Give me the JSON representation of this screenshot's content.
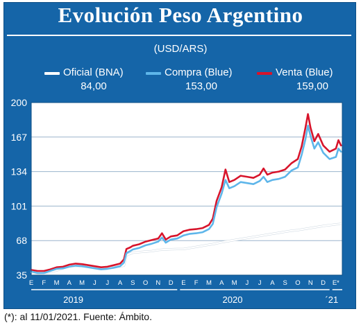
{
  "header": {
    "title": "Evolución Peso Argentino",
    "unit": "(USD/ARS)"
  },
  "footnote": "(*): al 11/01/2021. Fuente: Ámbito.",
  "colors": {
    "background": "#1565a8",
    "plot_background": "#ffffff",
    "oficial": "#ffffff",
    "compra": "#5eb6ea",
    "venta": "#d7142b"
  },
  "chart_data": {
    "type": "line",
    "title": "Evolución Peso Argentino",
    "ylabel": "(USD/ARS)",
    "ylim": [
      35,
      200
    ],
    "yticks": [
      35,
      68,
      101,
      134,
      167,
      200
    ],
    "month_labels": [
      "E",
      "F",
      "M",
      "A",
      "M",
      "J",
      "J",
      "A",
      "S",
      "O",
      "N",
      "D",
      "E",
      "F",
      "M",
      "A",
      "M",
      "J",
      "J",
      "A",
      "S",
      "O",
      "N",
      "D",
      "E*"
    ],
    "year_labels": [
      "2019",
      "2020",
      "´21"
    ],
    "grid": true,
    "legend_position": "top",
    "series": [
      {
        "name": "Oficial (BNA)",
        "last_value": "84,00",
        "color": "#ffffff",
        "x": [
          0,
          0.5,
          1,
          1.5,
          2,
          2.5,
          3,
          3.5,
          4,
          4.5,
          5,
          5.5,
          6,
          6.5,
          7,
          7.3,
          7.5,
          7.8,
          8,
          8.5,
          9,
          9.5,
          10,
          10.5,
          11,
          11.5,
          12,
          12.5,
          13,
          13.5,
          14,
          14.5,
          15,
          15.5,
          16,
          16.5,
          17,
          17.5,
          18,
          18.5,
          19,
          19.5,
          20,
          20.5,
          21,
          21.5,
          22,
          22.5,
          23,
          23.5,
          24,
          24.4
        ],
        "values": [
          37.5,
          37.0,
          37.2,
          38.0,
          39.5,
          41.5,
          43.5,
          43.8,
          43.6,
          43.0,
          42.5,
          42.0,
          42.0,
          42.2,
          43.5,
          44.0,
          54.0,
          55.5,
          56.5,
          57.0,
          57.5,
          58.0,
          59.0,
          59.5,
          59.8,
          59.9,
          60.0,
          61.0,
          62.0,
          63.0,
          64.0,
          65.0,
          66.5,
          67.5,
          68.5,
          69.5,
          70.5,
          71.5,
          72.5,
          73.5,
          74.5,
          75.5,
          76.5,
          77.5,
          78.0,
          79.0,
          80.0,
          81.0,
          82.0,
          82.8,
          83.6,
          84.0
        ]
      },
      {
        "name": "Compra (Blue)",
        "last_value": "153,00",
        "color": "#5eb6ea",
        "x": [
          0,
          0.5,
          1,
          1.5,
          2,
          2.5,
          3,
          3.5,
          4,
          4.5,
          5,
          5.5,
          6,
          6.5,
          7,
          7.3,
          7.5,
          7.8,
          8,
          8.5,
          9,
          9.5,
          10,
          10.3,
          10.6,
          11,
          11.5,
          12,
          12.5,
          13,
          13.5,
          14,
          14.3,
          14.6,
          15,
          15.3,
          15.6,
          16,
          16.5,
          17,
          17.5,
          18,
          18.3,
          18.6,
          19,
          19.5,
          20,
          20.5,
          21,
          21.3,
          21.6,
          21.8,
          22,
          22.3,
          22.6,
          23,
          23.5,
          24,
          24.2,
          24.4
        ],
        "values": [
          38.5,
          37.0,
          37.0,
          39.0,
          41.0,
          41.5,
          43.0,
          44.0,
          43.5,
          42.5,
          41.5,
          40.5,
          41.0,
          42.0,
          43.5,
          47.0,
          56.0,
          58.0,
          59.5,
          61.0,
          63.5,
          65.0,
          67.0,
          71.0,
          66.0,
          69.0,
          70.0,
          73.0,
          74.5,
          75.0,
          76.0,
          79.0,
          84.0,
          100.0,
          113.0,
          126.0,
          118.0,
          120.0,
          124.0,
          123.0,
          122.0,
          125.0,
          129.0,
          124.0,
          126.0,
          127.0,
          129.0,
          135.0,
          138.0,
          150.0,
          165.0,
          178.0,
          168.0,
          156.0,
          162.0,
          152.0,
          146.0,
          148.0,
          156.0,
          153.0
        ]
      },
      {
        "name": "Venta (Blue)",
        "last_value": "159,00",
        "color": "#d7142b",
        "x": [
          0,
          0.5,
          1,
          1.5,
          2,
          2.5,
          3,
          3.5,
          4,
          4.5,
          5,
          5.5,
          6,
          6.5,
          7,
          7.3,
          7.5,
          7.8,
          8,
          8.5,
          9,
          9.5,
          10,
          10.3,
          10.6,
          11,
          11.5,
          12,
          12.5,
          13,
          13.5,
          14,
          14.3,
          14.6,
          15,
          15.3,
          15.6,
          16,
          16.5,
          17,
          17.5,
          18,
          18.3,
          18.6,
          19,
          19.5,
          20,
          20.5,
          21,
          21.3,
          21.6,
          21.8,
          22,
          22.3,
          22.6,
          23,
          23.5,
          24,
          24.2,
          24.4
        ],
        "values": [
          40.0,
          39.0,
          39.0,
          40.5,
          42.5,
          43.0,
          45.0,
          46.0,
          45.5,
          44.5,
          43.5,
          42.5,
          43.0,
          44.5,
          46.0,
          50.0,
          60.0,
          61.5,
          63.0,
          64.5,
          67.0,
          68.5,
          70.0,
          75.0,
          69.0,
          72.0,
          73.0,
          77.0,
          78.5,
          79.0,
          80.0,
          83.0,
          89.0,
          106.0,
          119.0,
          136.0,
          124.0,
          126.0,
          130.0,
          129.0,
          128.0,
          131.0,
          137.0,
          131.0,
          133.0,
          134.0,
          136.0,
          142.0,
          146.0,
          158.0,
          176.0,
          189.0,
          176.0,
          163.0,
          170.0,
          159.0,
          153.0,
          156.0,
          164.0,
          159.0
        ]
      }
    ]
  }
}
